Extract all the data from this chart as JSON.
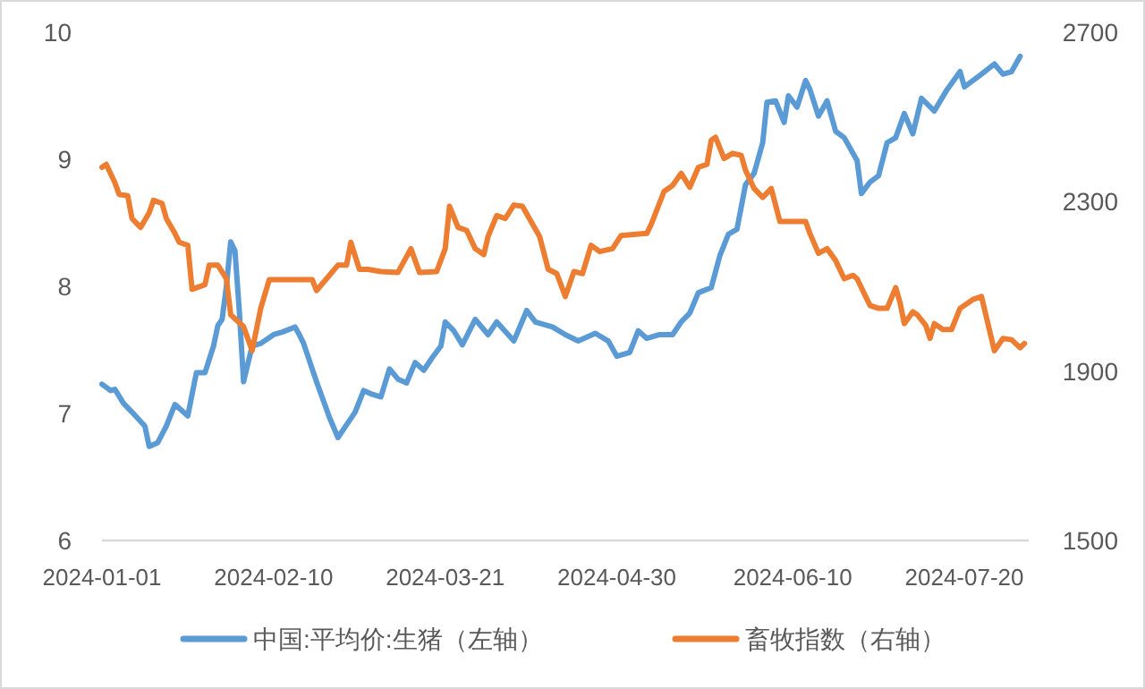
{
  "chart_data": {
    "type": "line",
    "legend": "bottom",
    "grid": false,
    "marker": "none",
    "line_style": "solid",
    "xlim": [
      "2024-01-01",
      "2024-08-04"
    ],
    "xticks": [
      "2024-01-01",
      "2024-02-10",
      "2024-03-21",
      "2024-04-30",
      "2024-06-10",
      "2024-07-20"
    ],
    "ylim": [
      6,
      10
    ],
    "yticks": [
      6,
      7,
      8,
      9,
      10
    ],
    "y2lim": [
      1500,
      2700
    ],
    "y2ticks": [
      1500,
      1900,
      2300,
      2700
    ],
    "series": [
      {
        "name": "中国:平均价:生猪（左轴）",
        "color": "#5b9bd5",
        "x": [
          "2024-01-01",
          "2024-01-03",
          "2024-01-04",
          "2024-01-06",
          "2024-01-08",
          "2024-01-11",
          "2024-01-12",
          "2024-01-14",
          "2024-01-16",
          "2024-01-18",
          "2024-01-20",
          "2024-01-21",
          "2024-01-23",
          "2024-01-25",
          "2024-01-27",
          "2024-01-28",
          "2024-01-29",
          "2024-01-30",
          "2024-01-31",
          "2024-02-01",
          "2024-02-02",
          "2024-02-03",
          "2024-02-05",
          "2024-02-07",
          "2024-02-10",
          "2024-02-12",
          "2024-02-15",
          "2024-02-16",
          "2024-02-17",
          "2024-02-20",
          "2024-02-23",
          "2024-02-25",
          "2024-02-26",
          "2024-02-29",
          "2024-03-02",
          "2024-03-04",
          "2024-03-06",
          "2024-03-08",
          "2024-03-10",
          "2024-03-12",
          "2024-03-14",
          "2024-03-16",
          "2024-03-18",
          "2024-03-20",
          "2024-03-21",
          "2024-03-23",
          "2024-03-25",
          "2024-03-28",
          "2024-03-31",
          "2024-04-02",
          "2024-04-06",
          "2024-04-09",
          "2024-04-11",
          "2024-04-15",
          "2024-04-18",
          "2024-04-21",
          "2024-04-25",
          "2024-04-28",
          "2024-04-30",
          "2024-05-03",
          "2024-05-05",
          "2024-05-07",
          "2024-05-10",
          "2024-05-13",
          "2024-05-15",
          "2024-05-17",
          "2024-05-19",
          "2024-05-22",
          "2024-05-24",
          "2024-05-26",
          "2024-05-28",
          "2024-05-30",
          "2024-06-01",
          "2024-06-03",
          "2024-06-04",
          "2024-06-06",
          "2024-06-08",
          "2024-06-09",
          "2024-06-11",
          "2024-06-13",
          "2024-06-14",
          "2024-06-16",
          "2024-06-18",
          "2024-06-20",
          "2024-06-22",
          "2024-06-25",
          "2024-06-26",
          "2024-06-28",
          "2024-06-30",
          "2024-07-02",
          "2024-07-04",
          "2024-07-06",
          "2024-07-08",
          "2024-07-10",
          "2024-07-13",
          "2024-07-16",
          "2024-07-19",
          "2024-07-20",
          "2024-07-24",
          "2024-07-27",
          "2024-07-29",
          "2024-07-31",
          "2024-08-02"
        ],
        "values": [
          7.23,
          7.18,
          7.19,
          7.08,
          7.01,
          6.9,
          6.74,
          6.77,
          6.9,
          7.07,
          7.01,
          6.98,
          7.32,
          7.32,
          7.53,
          7.69,
          7.74,
          8.0,
          8.35,
          8.28,
          7.81,
          7.25,
          7.53,
          7.55,
          7.62,
          7.64,
          7.68,
          7.62,
          7.55,
          7.25,
          6.97,
          6.81,
          6.86,
          7.01,
          7.18,
          7.15,
          7.13,
          7.35,
          7.27,
          7.24,
          7.4,
          7.34,
          7.44,
          7.53,
          7.72,
          7.65,
          7.54,
          7.74,
          7.62,
          7.72,
          7.57,
          7.81,
          7.72,
          7.68,
          7.62,
          7.57,
          7.63,
          7.57,
          7.45,
          7.48,
          7.65,
          7.59,
          7.62,
          7.62,
          7.72,
          7.79,
          7.95,
          7.99,
          8.24,
          8.41,
          8.45,
          8.8,
          8.89,
          9.13,
          9.45,
          9.46,
          9.29,
          9.5,
          9.41,
          9.62,
          9.55,
          9.34,
          9.46,
          9.22,
          9.17,
          8.99,
          8.73,
          8.82,
          8.87,
          9.13,
          9.17,
          9.36,
          9.2,
          9.48,
          9.38,
          9.55,
          9.69,
          9.57,
          9.67,
          9.75,
          9.67,
          9.69,
          9.81
        ]
      },
      {
        "name": "畜牧指数（右轴）",
        "color": "#ed7d31",
        "axis": "y2",
        "x": [
          "2024-01-01",
          "2024-01-02",
          "2024-01-04",
          "2024-01-05",
          "2024-01-07",
          "2024-01-08",
          "2024-01-10",
          "2024-01-12",
          "2024-01-13",
          "2024-01-15",
          "2024-01-16",
          "2024-01-18",
          "2024-01-19",
          "2024-01-21",
          "2024-01-22",
          "2024-01-25",
          "2024-01-26",
          "2024-01-28",
          "2024-01-30",
          "2024-01-31",
          "2024-02-03",
          "2024-02-05",
          "2024-02-07",
          "2024-02-09",
          "2024-02-13",
          "2024-02-19",
          "2024-02-20",
          "2024-02-23",
          "2024-02-25",
          "2024-02-27",
          "2024-02-28",
          "2024-03-01",
          "2024-03-03",
          "2024-03-06",
          "2024-03-10",
          "2024-03-13",
          "2024-03-15",
          "2024-03-19",
          "2024-03-21",
          "2024-03-22",
          "2024-03-24",
          "2024-03-26",
          "2024-03-28",
          "2024-03-30",
          "2024-03-31",
          "2024-04-02",
          "2024-04-04",
          "2024-04-06",
          "2024-04-08",
          "2024-04-10",
          "2024-04-12",
          "2024-04-14",
          "2024-04-16",
          "2024-04-18",
          "2024-04-20",
          "2024-04-22",
          "2024-04-24",
          "2024-04-26",
          "2024-04-29",
          "2024-05-01",
          "2024-05-07",
          "2024-05-08",
          "2024-05-11",
          "2024-05-13",
          "2024-05-15",
          "2024-05-17",
          "2024-05-19",
          "2024-05-21",
          "2024-05-22",
          "2024-05-23",
          "2024-05-25",
          "2024-05-27",
          "2024-05-29",
          "2024-05-30",
          "2024-06-01",
          "2024-06-03",
          "2024-06-05",
          "2024-06-07",
          "2024-06-09",
          "2024-06-13",
          "2024-06-14",
          "2024-06-16",
          "2024-06-18",
          "2024-06-20",
          "2024-06-22",
          "2024-06-24",
          "2024-06-25",
          "2024-06-27",
          "2024-06-28",
          "2024-06-30",
          "2024-07-02",
          "2024-07-04",
          "2024-07-05",
          "2024-07-06",
          "2024-07-08",
          "2024-07-09",
          "2024-07-11",
          "2024-07-12",
          "2024-07-13",
          "2024-07-15",
          "2024-07-17",
          "2024-07-19",
          "2024-07-22",
          "2024-07-24",
          "2024-07-25",
          "2024-07-27",
          "2024-07-29",
          "2024-07-31",
          "2024-08-02",
          "2024-08-03"
        ],
        "values": [
          2381,
          2388,
          2345,
          2317,
          2314,
          2260,
          2239,
          2274,
          2303,
          2296,
          2260,
          2225,
          2204,
          2197,
          2093,
          2104,
          2150,
          2150,
          2118,
          2033,
          2005,
          1948,
          2048,
          2116,
          2116,
          2116,
          2090,
          2126,
          2150,
          2150,
          2204,
          2140,
          2140,
          2135,
          2133,
          2189,
          2133,
          2135,
          2189,
          2289,
          2239,
          2232,
          2189,
          2175,
          2218,
          2267,
          2260,
          2292,
          2289,
          2253,
          2218,
          2140,
          2130,
          2076,
          2135,
          2130,
          2197,
          2182,
          2189,
          2220,
          2225,
          2246,
          2324,
          2338,
          2367,
          2334,
          2381,
          2388,
          2445,
          2452,
          2402,
          2414,
          2409,
          2374,
          2331,
          2310,
          2331,
          2253,
          2253,
          2253,
          2225,
          2178,
          2189,
          2161,
          2118,
          2126,
          2118,
          2076,
          2055,
          2048,
          2048,
          2097,
          2062,
          2012,
          2040,
          2033,
          2008,
          1977,
          2012,
          1998,
          1998,
          2048,
          2069,
          2076,
          2033,
          1948,
          1977,
          1974,
          1955,
          1965
        ]
      }
    ]
  }
}
